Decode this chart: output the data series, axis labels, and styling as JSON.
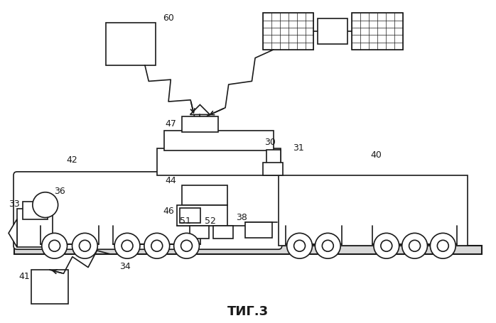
{
  "title": "ΤИГ.3",
  "bg_color": "#ffffff",
  "line_color": "#1a1a1a",
  "figsize": [
    6.98,
    4.56
  ],
  "dpi": 100
}
